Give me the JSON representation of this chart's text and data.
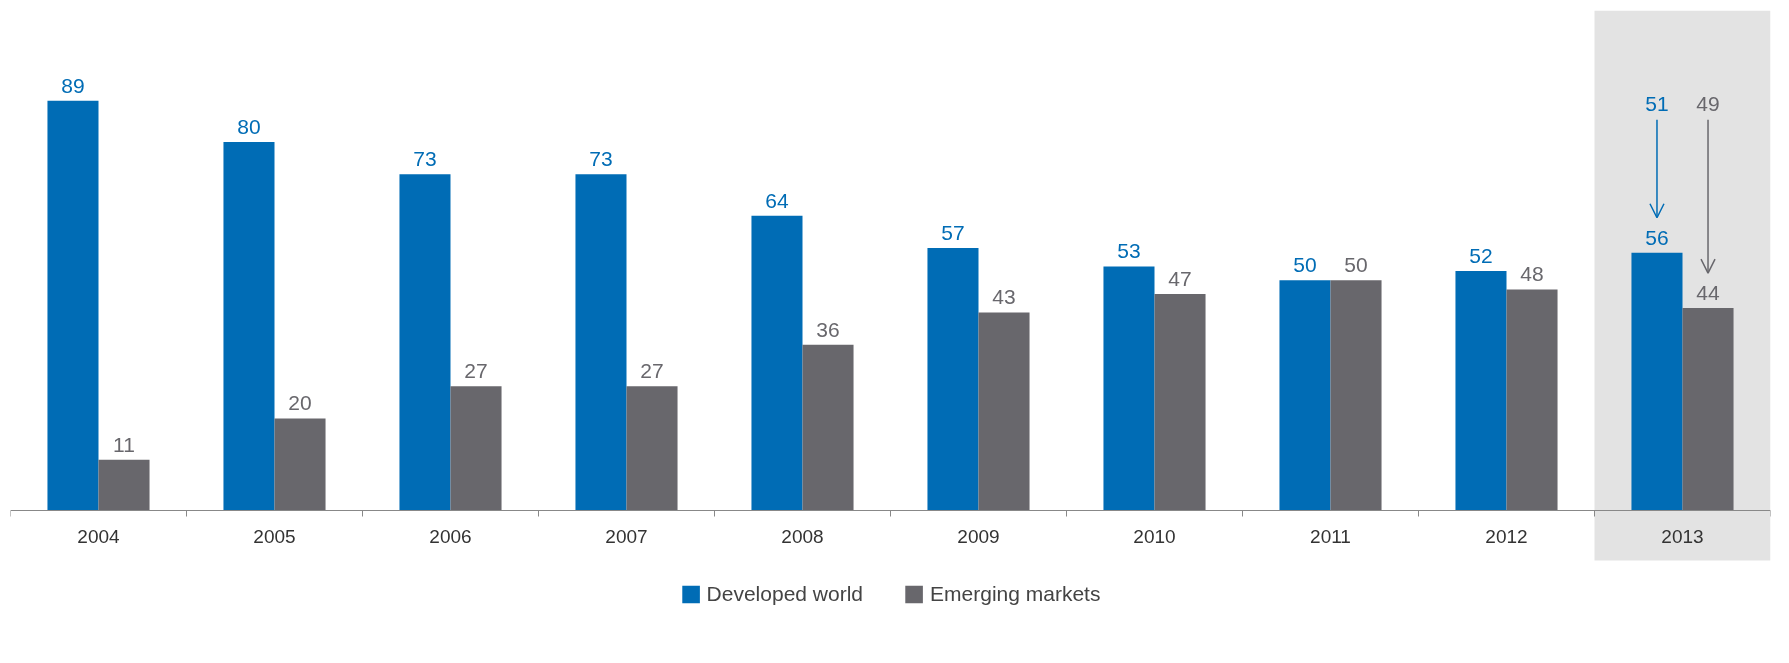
{
  "chart_data": {
    "type": "bar",
    "categories": [
      "2004",
      "2005",
      "2006",
      "2007",
      "2008",
      "2009",
      "2010",
      "2011",
      "2012",
      "2013"
    ],
    "series": [
      {
        "name": "Developed world",
        "color": "#006cb5",
        "values": [
          89,
          80,
          73,
          73,
          64,
          57,
          53,
          50,
          52,
          56
        ]
      },
      {
        "name": "Emerging markets",
        "color": "#68676c",
        "values": [
          11,
          20,
          27,
          27,
          36,
          43,
          47,
          50,
          48,
          44
        ]
      }
    ],
    "data_labels": true,
    "legend": "bottom",
    "grid": false,
    "bands": [
      {
        "axis": "x",
        "from": "2013",
        "to": "2013",
        "color": "#e3e3e3"
      }
    ],
    "annotations": [
      "51",
      "49"
    ]
  }
}
